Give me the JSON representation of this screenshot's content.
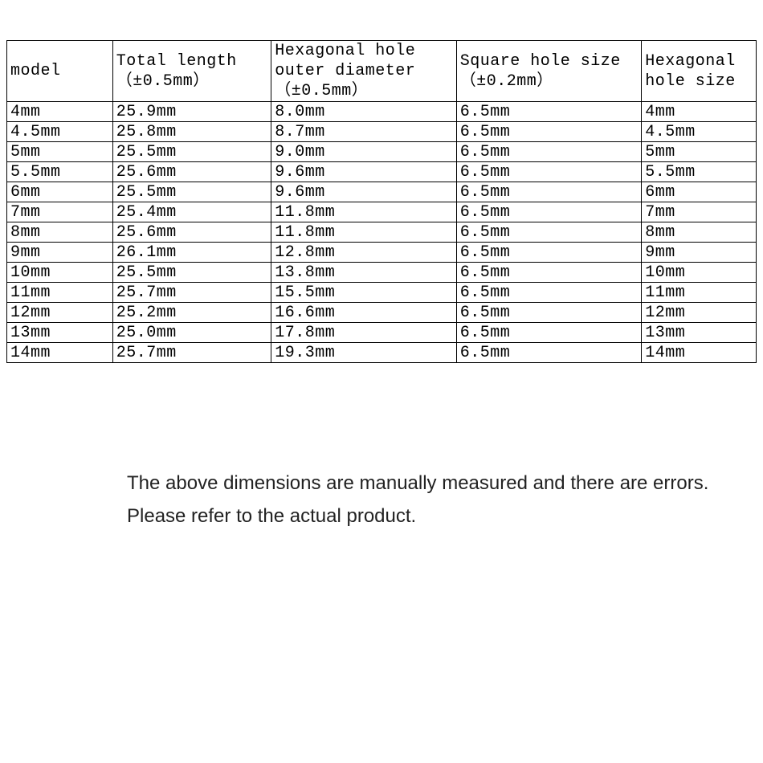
{
  "table": {
    "columns": [
      "model",
      "Total length （±0.5mm）",
      "Hexagonal hole outer diameter （±0.5mm）",
      "Square hole size （±0.2mm）",
      "Hexagonal hole size"
    ],
    "column_widths_pct": [
      12,
      18,
      21,
      21,
      13
    ],
    "border_color": "#000000",
    "background_color": "#ffffff",
    "text_color": "#000000",
    "header_fontsize": 20,
    "cell_fontsize": 20,
    "font_family": "SimSun / Courier-like monospace",
    "rows": [
      [
        "4mm",
        "25.9mm",
        "8.0mm",
        "6.5mm",
        "4mm"
      ],
      [
        "4.5mm",
        "25.8mm",
        "8.7mm",
        "6.5mm",
        "4.5mm"
      ],
      [
        "5mm",
        "25.5mm",
        "9.0mm",
        "6.5mm",
        "5mm"
      ],
      [
        "5.5mm",
        "25.6mm",
        "9.6mm",
        "6.5mm",
        "5.5mm"
      ],
      [
        "6mm",
        "25.5mm",
        "9.6mm",
        "6.5mm",
        "6mm"
      ],
      [
        "7mm",
        "25.4mm",
        "11.8mm",
        "6.5mm",
        "7mm"
      ],
      [
        "8mm",
        "25.6mm",
        "11.8mm",
        "6.5mm",
        "8mm"
      ],
      [
        "9mm",
        "26.1mm",
        "12.8mm",
        "6.5mm",
        "9mm"
      ],
      [
        "10mm",
        "25.5mm",
        "13.8mm",
        "6.5mm",
        "10mm"
      ],
      [
        "11mm",
        "25.7mm",
        "15.5mm",
        "6.5mm",
        "11mm"
      ],
      [
        "12mm",
        "25.2mm",
        "16.6mm",
        "6.5mm",
        "12mm"
      ],
      [
        "13mm",
        "25.0mm",
        "17.8mm",
        "6.5mm",
        "13mm"
      ],
      [
        "14mm",
        "25.7mm",
        "19.3mm",
        "6.5mm",
        "14mm"
      ]
    ]
  },
  "note": {
    "line1": "The above dimensions are manually measured and there are errors.",
    "line2": "Please refer to the actual product.",
    "font_family": "Arial",
    "fontsize": 24,
    "color": "#222222"
  }
}
